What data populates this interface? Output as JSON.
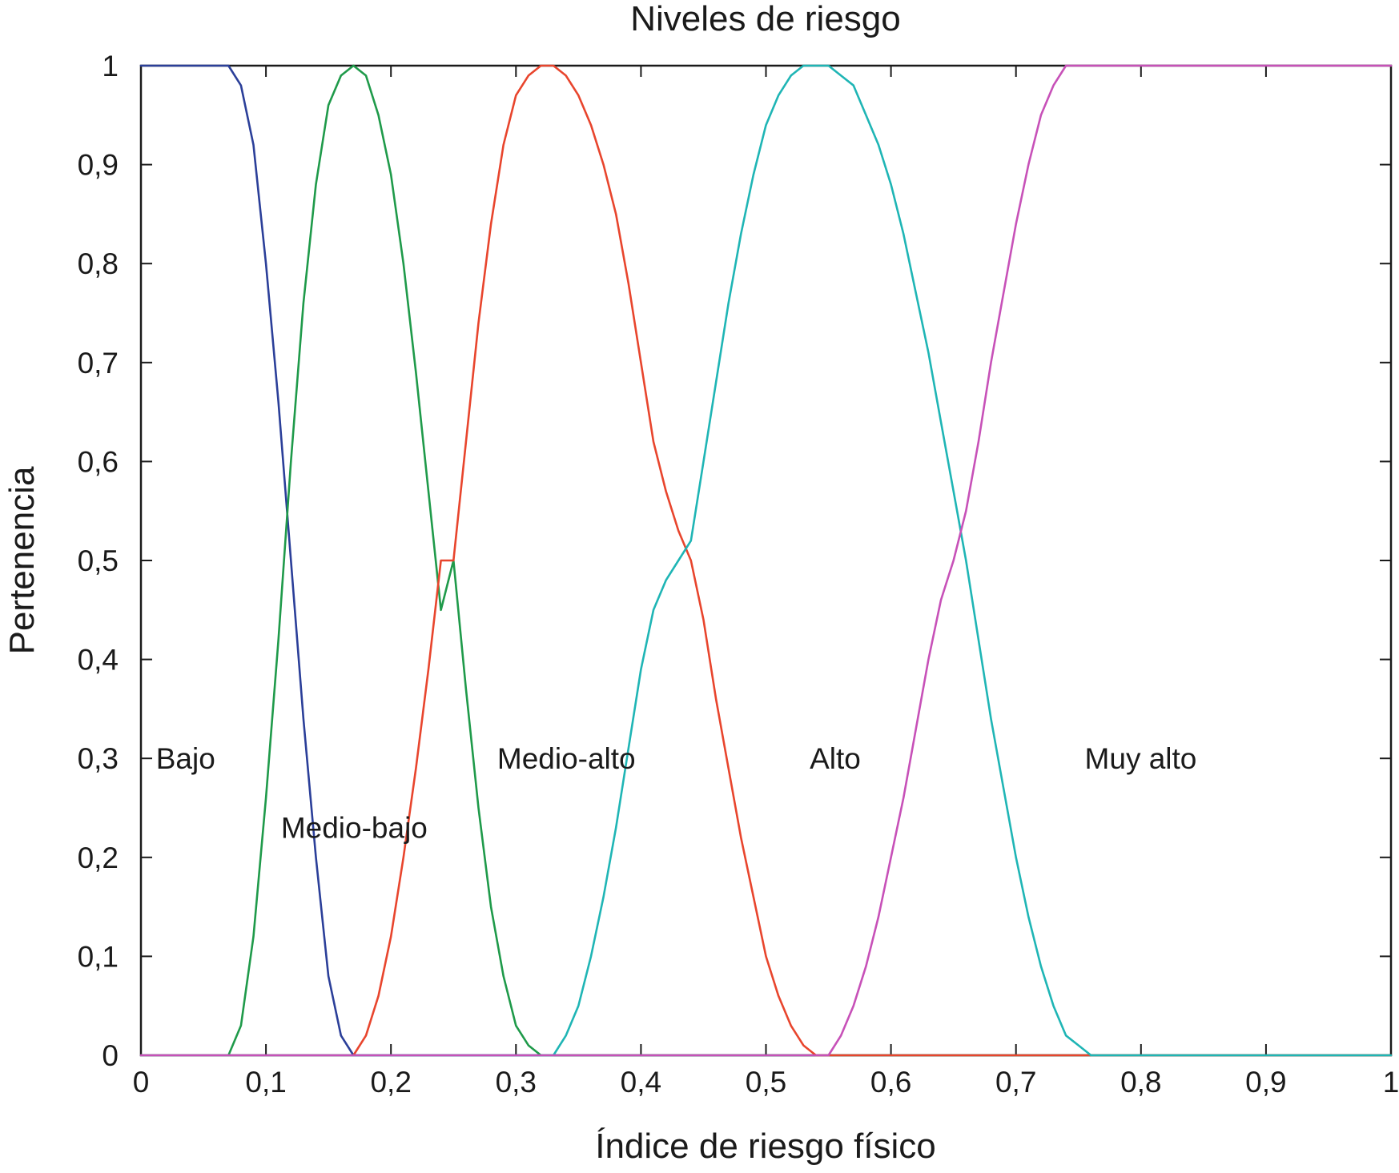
{
  "chart_data": {
    "type": "line",
    "title": "Niveles de riesgo",
    "xlabel": "Índice de riesgo físico",
    "ylabel": "Pertenencia",
    "xlim": [
      0,
      1
    ],
    "ylim": [
      0,
      1
    ],
    "x_ticks": [
      0,
      0.1,
      0.2,
      0.3,
      0.4,
      0.5,
      0.6,
      0.7,
      0.8,
      0.9,
      1
    ],
    "x_tick_labels": [
      "0",
      "0,1",
      "0,2",
      "0,3",
      "0,4",
      "0,5",
      "0,6",
      "0,7",
      "0,8",
      "0,9",
      "1"
    ],
    "y_ticks": [
      0,
      0.1,
      0.2,
      0.3,
      0.4,
      0.5,
      0.6,
      0.7,
      0.8,
      0.9,
      1
    ],
    "y_tick_labels": [
      "0",
      "0,1",
      "0,2",
      "0,3",
      "0,4",
      "0,5",
      "0,6",
      "0,7",
      "0,8",
      "0,9",
      "1"
    ],
    "grid": false,
    "series": [
      {
        "label": "Bajo",
        "color": "#2b3f99",
        "x": [
          0,
          0.07,
          0.08,
          0.09,
          0.1,
          0.11,
          0.12,
          0.13,
          0.14,
          0.15,
          0.16,
          0.17,
          1
        ],
        "y": [
          1,
          1,
          0.98,
          0.92,
          0.8,
          0.66,
          0.5,
          0.34,
          0.2,
          0.08,
          0.02,
          0,
          0
        ],
        "label_pos": [
          0.012,
          0.3
        ]
      },
      {
        "label": "Medio-bajo",
        "color": "#1f9a4a",
        "x": [
          0,
          0.07,
          0.08,
          0.09,
          0.1,
          0.11,
          0.12,
          0.13,
          0.14,
          0.15,
          0.16,
          0.17,
          0.18,
          0.19,
          0.2,
          0.21,
          0.22,
          0.23,
          0.24,
          0.25,
          0.26,
          0.27,
          0.28,
          0.29,
          0.3,
          0.31,
          0.32,
          0.33,
          1
        ],
        "y": [
          0,
          0,
          0.03,
          0.12,
          0.26,
          0.42,
          0.6,
          0.76,
          0.88,
          0.96,
          0.99,
          1,
          0.99,
          0.95,
          0.89,
          0.8,
          0.69,
          0.57,
          0.45,
          0.5,
          0.37,
          0.25,
          0.15,
          0.08,
          0.03,
          0.01,
          0,
          0,
          0
        ],
        "label_pos": [
          0.112,
          0.23
        ]
      },
      {
        "label": "Medio-alto",
        "color": "#e8452d",
        "x": [
          0,
          0.17,
          0.18,
          0.19,
          0.2,
          0.21,
          0.22,
          0.23,
          0.24,
          0.25,
          0.26,
          0.27,
          0.28,
          0.29,
          0.3,
          0.31,
          0.32,
          0.33,
          0.34,
          0.35,
          0.36,
          0.37,
          0.38,
          0.39,
          0.4,
          0.41,
          0.42,
          0.43,
          0.44,
          0.45,
          0.46,
          0.47,
          0.48,
          0.49,
          0.5,
          0.51,
          0.52,
          0.53,
          0.54,
          0.55,
          1
        ],
        "y": [
          0,
          0,
          0.02,
          0.06,
          0.12,
          0.2,
          0.29,
          0.39,
          0.5,
          0.5,
          0.62,
          0.74,
          0.84,
          0.92,
          0.97,
          0.99,
          1,
          1,
          0.99,
          0.97,
          0.94,
          0.9,
          0.85,
          0.78,
          0.7,
          0.62,
          0.57,
          0.53,
          0.5,
          0.44,
          0.36,
          0.29,
          0.22,
          0.16,
          0.1,
          0.06,
          0.03,
          0.01,
          0,
          0,
          0
        ],
        "label_pos": [
          0.285,
          0.3
        ]
      },
      {
        "label": "Alto",
        "color": "#1fb5b5",
        "x": [
          0,
          0.33,
          0.34,
          0.35,
          0.36,
          0.37,
          0.38,
          0.39,
          0.4,
          0.41,
          0.42,
          0.43,
          0.44,
          0.45,
          0.46,
          0.47,
          0.48,
          0.49,
          0.5,
          0.51,
          0.52,
          0.53,
          0.54,
          0.55,
          0.56,
          0.57,
          0.58,
          0.59,
          0.6,
          0.61,
          0.62,
          0.63,
          0.64,
          0.65,
          0.66,
          0.67,
          0.68,
          0.69,
          0.7,
          0.71,
          0.72,
          0.73,
          0.74,
          0.75,
          0.76,
          0.77,
          0.78,
          1
        ],
        "y": [
          0,
          0,
          0.02,
          0.05,
          0.1,
          0.16,
          0.23,
          0.31,
          0.39,
          0.45,
          0.48,
          0.5,
          0.52,
          0.6,
          0.68,
          0.76,
          0.83,
          0.89,
          0.94,
          0.97,
          0.99,
          1,
          1,
          1,
          0.99,
          0.98,
          0.95,
          0.92,
          0.88,
          0.83,
          0.77,
          0.71,
          0.64,
          0.57,
          0.5,
          0.42,
          0.34,
          0.27,
          0.2,
          0.14,
          0.09,
          0.05,
          0.02,
          0.01,
          0,
          0,
          0,
          0
        ],
        "label_pos": [
          0.535,
          0.3
        ]
      },
      {
        "label": "Muy alto",
        "color": "#c751b8",
        "x": [
          0,
          0.55,
          0.56,
          0.57,
          0.58,
          0.59,
          0.6,
          0.61,
          0.62,
          0.63,
          0.64,
          0.65,
          0.66,
          0.67,
          0.68,
          0.69,
          0.7,
          0.71,
          0.72,
          0.73,
          0.74,
          0.75,
          0.76,
          1
        ],
        "y": [
          0,
          0,
          0.02,
          0.05,
          0.09,
          0.14,
          0.2,
          0.26,
          0.33,
          0.4,
          0.46,
          0.5,
          0.55,
          0.62,
          0.7,
          0.77,
          0.84,
          0.9,
          0.95,
          0.98,
          1,
          1,
          1,
          1
        ],
        "label_pos": [
          0.755,
          0.3
        ]
      }
    ]
  }
}
